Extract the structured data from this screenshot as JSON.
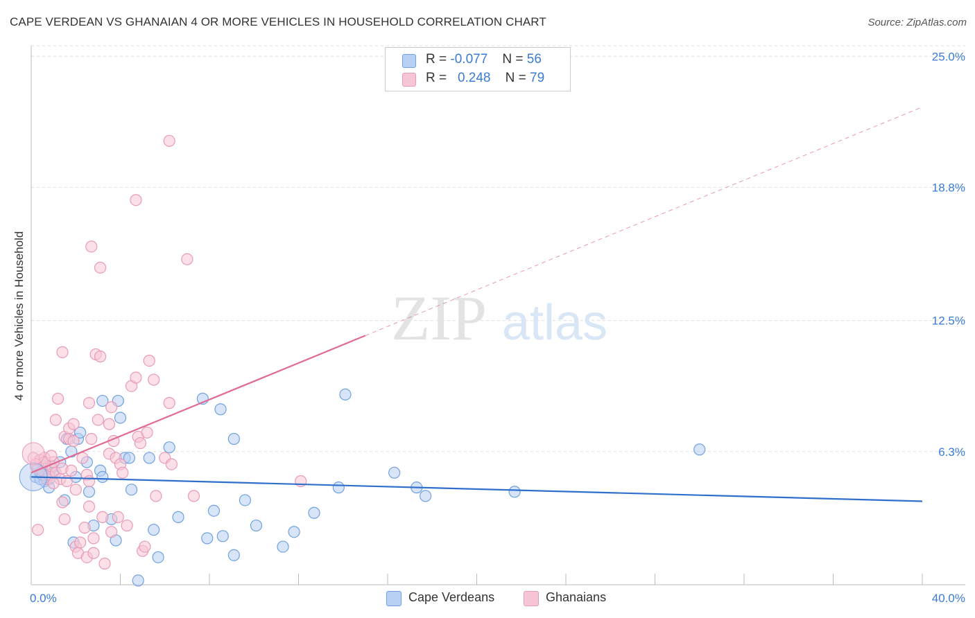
{
  "chart_data": {
    "type": "scatter",
    "title": "CAPE VERDEAN VS GHANAIAN 4 OR MORE VEHICLES IN HOUSEHOLD CORRELATION CHART",
    "source": "Source: ZipAtlas.com",
    "ylabel": "4 or more Vehicles in Household",
    "xlabel": "",
    "xlim": [
      0,
      40
    ],
    "ylim": [
      0,
      25.5
    ],
    "x_tick_labels": [
      "0.0%",
      "40.0%"
    ],
    "y_ticks": [
      6.3,
      12.5,
      18.8,
      25.0
    ],
    "y_tick_labels": [
      "6.3%",
      "12.5%",
      "18.8%",
      "25.0%"
    ],
    "watermark": {
      "zip": "ZIP",
      "atlas": "atlas"
    },
    "legend": {
      "rows": [
        {
          "r_label": "R =",
          "r_value": "-0.077",
          "n_label": "N =",
          "n_value": "56"
        },
        {
          "r_label": "R =",
          "r_value": "0.248",
          "n_label": "N =",
          "n_value": "79"
        }
      ]
    },
    "series": [
      {
        "name": "Cape Verdeans",
        "color": "#6fa0e0",
        "fill": "#b8d0f3",
        "line_color": "#2f6fcc",
        "trend": {
          "x": [
            0,
            40
          ],
          "y": [
            5.1,
            3.95
          ],
          "dashed_from": null
        },
        "points": [
          [
            0.2,
            5.1
          ],
          [
            0.4,
            5.3
          ],
          [
            0.6,
            5.6
          ],
          [
            0.6,
            4.9
          ],
          [
            0.8,
            5.0
          ],
          [
            0.8,
            4.6
          ],
          [
            0.9,
            5.5
          ],
          [
            1.0,
            5.3
          ],
          [
            1.3,
            5.8
          ],
          [
            1.5,
            4.0
          ],
          [
            1.6,
            6.9
          ],
          [
            1.8,
            6.3
          ],
          [
            1.9,
            2.0
          ],
          [
            2.0,
            5.1
          ],
          [
            2.1,
            6.9
          ],
          [
            2.2,
            7.2
          ],
          [
            2.5,
            5.8
          ],
          [
            2.6,
            4.4
          ],
          [
            2.8,
            2.8
          ],
          [
            3.1,
            5.4
          ],
          [
            3.2,
            8.7
          ],
          [
            3.2,
            5.1
          ],
          [
            3.6,
            3.1
          ],
          [
            3.8,
            2.1
          ],
          [
            3.9,
            8.7
          ],
          [
            4.0,
            7.9
          ],
          [
            4.2,
            6.0
          ],
          [
            4.4,
            6.0
          ],
          [
            4.5,
            4.5
          ],
          [
            4.8,
            0.2
          ],
          [
            5.3,
            6.0
          ],
          [
            5.5,
            2.6
          ],
          [
            5.7,
            1.3
          ],
          [
            6.2,
            6.5
          ],
          [
            6.6,
            3.2
          ],
          [
            7.7,
            8.8
          ],
          [
            7.9,
            2.2
          ],
          [
            8.2,
            3.5
          ],
          [
            8.5,
            8.3
          ],
          [
            8.6,
            2.3
          ],
          [
            9.1,
            6.9
          ],
          [
            9.1,
            1.4
          ],
          [
            9.6,
            4.0
          ],
          [
            10.1,
            2.8
          ],
          [
            11.3,
            1.8
          ],
          [
            11.8,
            2.5
          ],
          [
            12.7,
            3.4
          ],
          [
            13.8,
            4.6
          ],
          [
            14.1,
            9.0
          ],
          [
            16.3,
            5.3
          ],
          [
            17.3,
            4.6
          ],
          [
            17.7,
            4.2
          ],
          [
            21.7,
            4.4
          ],
          [
            30.0,
            6.4
          ],
          [
            0.4,
            5.0
          ],
          [
            0.5,
            5.2
          ]
        ]
      },
      {
        "name": "Ghanaians",
        "color": "#e89ab6",
        "fill": "#f7c6d6",
        "line_color": "#e06a94",
        "trend": {
          "x": [
            0,
            40
          ],
          "y": [
            5.3,
            22.6
          ],
          "solid_until": 15.0
        },
        "points": [
          [
            0.1,
            6.0
          ],
          [
            0.2,
            5.6
          ],
          [
            0.3,
            5.5
          ],
          [
            0.3,
            2.6
          ],
          [
            0.4,
            5.9
          ],
          [
            0.5,
            5.4
          ],
          [
            0.6,
            6.0
          ],
          [
            0.7,
            5.0
          ],
          [
            0.8,
            5.2
          ],
          [
            0.9,
            5.6
          ],
          [
            1.0,
            5.8
          ],
          [
            1.1,
            5.3
          ],
          [
            1.1,
            7.8
          ],
          [
            1.2,
            8.8
          ],
          [
            1.3,
            5.0
          ],
          [
            1.4,
            5.5
          ],
          [
            1.4,
            3.9
          ],
          [
            1.4,
            11.0
          ],
          [
            1.5,
            3.1
          ],
          [
            1.5,
            7.0
          ],
          [
            1.6,
            4.9
          ],
          [
            1.7,
            6.9
          ],
          [
            1.7,
            7.4
          ],
          [
            1.8,
            5.4
          ],
          [
            1.9,
            6.8
          ],
          [
            1.9,
            7.6
          ],
          [
            2.0,
            4.5
          ],
          [
            2.0,
            1.8
          ],
          [
            2.1,
            1.5
          ],
          [
            2.2,
            2.0
          ],
          [
            2.3,
            6.0
          ],
          [
            2.4,
            2.7
          ],
          [
            2.5,
            1.3
          ],
          [
            2.5,
            5.2
          ],
          [
            2.6,
            3.7
          ],
          [
            2.6,
            4.9
          ],
          [
            2.6,
            8.6
          ],
          [
            2.7,
            6.9
          ],
          [
            2.7,
            16.0
          ],
          [
            2.8,
            2.2
          ],
          [
            2.8,
            1.5
          ],
          [
            2.9,
            10.9
          ],
          [
            3.0,
            7.8
          ],
          [
            3.1,
            10.8
          ],
          [
            3.1,
            15.0
          ],
          [
            3.2,
            3.2
          ],
          [
            3.3,
            1.0
          ],
          [
            3.5,
            7.6
          ],
          [
            3.5,
            6.2
          ],
          [
            3.6,
            8.4
          ],
          [
            3.6,
            2.5
          ],
          [
            3.7,
            6.8
          ],
          [
            3.8,
            6.0
          ],
          [
            3.9,
            3.2
          ],
          [
            4.0,
            5.7
          ],
          [
            4.1,
            5.3
          ],
          [
            4.3,
            2.8
          ],
          [
            4.5,
            9.4
          ],
          [
            4.7,
            18.2
          ],
          [
            4.7,
            9.8
          ],
          [
            4.8,
            7.0
          ],
          [
            4.9,
            6.7
          ],
          [
            5.0,
            1.6
          ],
          [
            5.1,
            1.8
          ],
          [
            5.2,
            7.2
          ],
          [
            5.3,
            10.6
          ],
          [
            5.5,
            9.7
          ],
          [
            5.6,
            4.2
          ],
          [
            6.0,
            6.0
          ],
          [
            6.2,
            8.6
          ],
          [
            6.2,
            21.0
          ],
          [
            6.3,
            5.7
          ],
          [
            7.0,
            15.4
          ],
          [
            7.3,
            4.2
          ],
          [
            12.1,
            4.9
          ],
          [
            0.6,
            5.8
          ],
          [
            0.9,
            6.1
          ],
          [
            1.0,
            4.8
          ],
          [
            0.2,
            5.7
          ]
        ]
      }
    ]
  }
}
